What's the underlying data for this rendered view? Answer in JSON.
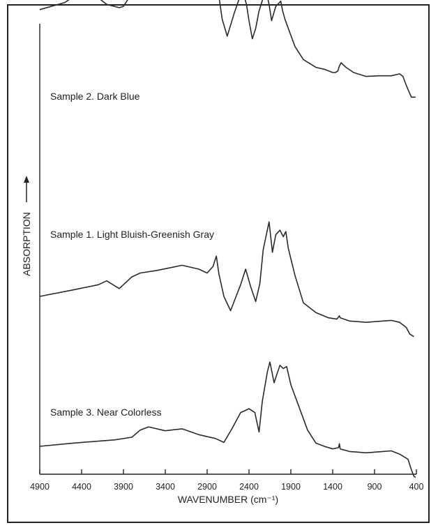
{
  "chart_data": {
    "type": "line",
    "title": "",
    "xlabel": "WAVENUMBER (cm⁻¹)",
    "ylabel": "ABSORPTION",
    "xlim": [
      4900,
      400
    ],
    "x_reversed": true,
    "x_ticks": [
      "4900",
      "4400",
      "3900",
      "3400",
      "2900",
      "2400",
      "1900",
      "1400",
      "900",
      "400"
    ],
    "y_units": "relative (stacked offset traces)",
    "grid": false,
    "legend": "none (traces labelled inline)",
    "series": [
      {
        "name": "Sample 2. Dark Blue",
        "x": [
          4900,
          4600,
          4350,
          4100,
          3950,
          3900,
          3800,
          3700,
          3450,
          3300,
          3050,
          2880,
          2820,
          2760,
          2720,
          2660,
          2580,
          2480,
          2430,
          2400,
          2360,
          2320,
          2280,
          2200,
          2160,
          2130,
          2080,
          2020,
          2000,
          1970,
          1930,
          1850,
          1750,
          1600,
          1500,
          1400,
          1370,
          1340,
          1320,
          1300,
          1240,
          1150,
          1000,
          850,
          700,
          600,
          560,
          520,
          480,
          460,
          430,
          410
        ],
        "y": [
          0.97,
          1.08,
          1.3,
          1.05,
          1.0,
          1.02,
          1.22,
          1.3,
          1.38,
          1.55,
          1.5,
          1.47,
          1.58,
          1.18,
          0.82,
          0.56,
          0.9,
          1.28,
          1.05,
          0.8,
          0.52,
          0.68,
          0.95,
          1.28,
          1.05,
          0.8,
          1.02,
          1.1,
          0.96,
          0.82,
          0.68,
          0.4,
          0.2,
          0.08,
          0.05,
          0.0,
          0.0,
          0.02,
          0.1,
          0.15,
          0.08,
          0.0,
          -0.06,
          -0.05,
          -0.05,
          -0.02,
          -0.06,
          -0.2,
          -0.32,
          -0.38,
          -0.38,
          -0.38
        ]
      },
      {
        "name": "Sample 1. Light Bluish-Greenish Gray",
        "x": [
          4900,
          4500,
          4200,
          4100,
          4050,
          3950,
          3800,
          3700,
          3500,
          3200,
          3000,
          2900,
          2830,
          2790,
          2760,
          2700,
          2620,
          2500,
          2440,
          2380,
          2320,
          2270,
          2230,
          2160,
          2120,
          2080,
          2030,
          1990,
          1960,
          1930,
          1850,
          1750,
          1600,
          1450,
          1350,
          1320,
          1310,
          1200,
          1000,
          800,
          700,
          600,
          520,
          480,
          430
        ],
        "y": [
          0.0,
          0.1,
          0.18,
          0.24,
          0.2,
          0.12,
          0.3,
          0.36,
          0.4,
          0.48,
          0.42,
          0.36,
          0.46,
          0.62,
          0.35,
          0.0,
          -0.22,
          0.18,
          0.42,
          0.15,
          -0.08,
          0.2,
          0.72,
          1.15,
          0.68,
          0.95,
          1.02,
          0.92,
          1.0,
          0.74,
          0.32,
          -0.1,
          -0.25,
          -0.33,
          -0.35,
          -0.3,
          -0.33,
          -0.38,
          -0.4,
          -0.38,
          -0.37,
          -0.4,
          -0.48,
          -0.58,
          -0.62
        ]
      },
      {
        "name": "Sample 3. Near Colorless",
        "x": [
          4900,
          4500,
          4000,
          3800,
          3700,
          3600,
          3400,
          3200,
          3000,
          2800,
          2700,
          2600,
          2500,
          2400,
          2330,
          2280,
          2240,
          2180,
          2150,
          2100,
          2070,
          2030,
          1990,
          1950,
          1900,
          1800,
          1700,
          1600,
          1500,
          1400,
          1330,
          1320,
          1310,
          1200,
          1000,
          800,
          700,
          600,
          500,
          460,
          430,
          410
        ],
        "y": [
          0.0,
          0.05,
          0.1,
          0.14,
          0.25,
          0.3,
          0.24,
          0.27,
          0.18,
          0.12,
          0.06,
          0.28,
          0.52,
          0.58,
          0.52,
          0.22,
          0.7,
          1.15,
          1.3,
          0.98,
          1.1,
          1.25,
          1.2,
          1.23,
          0.95,
          0.6,
          0.25,
          0.05,
          0.0,
          -0.04,
          -0.02,
          0.04,
          -0.04,
          -0.08,
          -0.1,
          -0.08,
          -0.07,
          -0.12,
          -0.2,
          -0.36,
          -0.46,
          -0.48
        ]
      }
    ]
  }
}
